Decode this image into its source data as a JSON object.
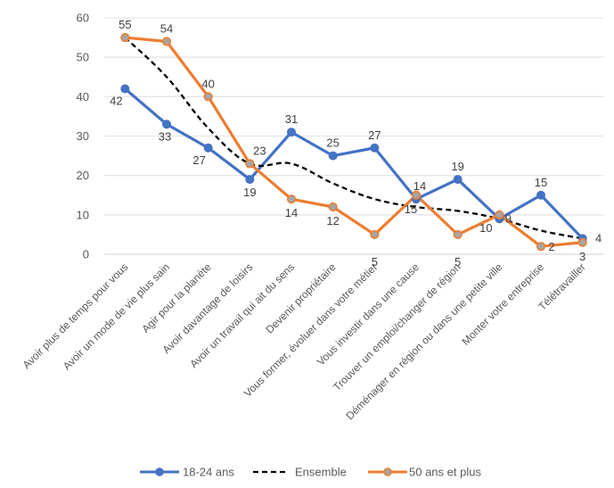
{
  "chart_data": {
    "type": "line",
    "title": "",
    "xlabel": "",
    "ylabel": "",
    "ylim": [
      0,
      60
    ],
    "yticks": [
      0,
      10,
      20,
      30,
      40,
      50,
      60
    ],
    "grid": true,
    "legend_position": "bottom",
    "categories": [
      "Avoir plus de temps pour vous",
      "Avoir un mode de vie plus sain",
      "Agir pour la planète",
      "Avoir davantage de loisirs",
      "Avoir un travail qui ait du sens",
      "Devenir propriétaire",
      "Vous former, évoluer dans votre métier",
      "Vous investir dans une cause",
      "Trouver un emploi/changer de région",
      "Déménager en région ou dans une petite ville",
      "Monter votre entreprise",
      "Télétravailler"
    ],
    "series": [
      {
        "name": "18-24 ans",
        "color": "#4472C4",
        "style": "solid",
        "marker": "circle",
        "labels": true,
        "values": [
          42,
          33,
          27,
          19,
          31,
          25,
          27,
          14,
          19,
          9,
          15,
          4
        ]
      },
      {
        "name": "Ensemble",
        "color": "#000000",
        "style": "dashed",
        "marker": "none",
        "labels": false,
        "values": [
          55,
          45,
          32,
          23,
          23,
          18,
          14,
          12,
          11,
          9,
          6,
          4
        ]
      },
      {
        "name": "50 ans et plus",
        "color": "#ED7D31",
        "marker_fill": "#A5A5A5",
        "style": "solid",
        "marker": "circle",
        "labels": true,
        "values": [
          55,
          54,
          40,
          23,
          14,
          12,
          5,
          15,
          5,
          10,
          2,
          3
        ]
      }
    ]
  }
}
